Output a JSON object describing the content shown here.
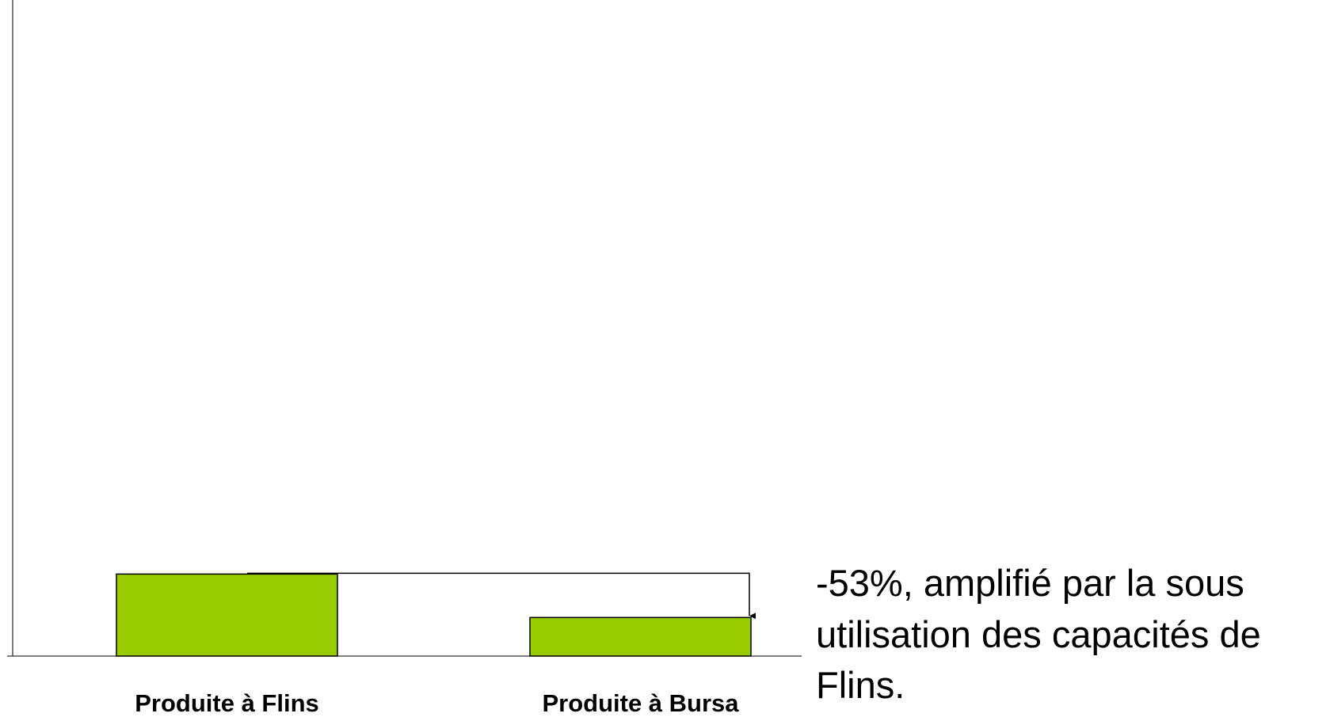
{
  "chart_data": {
    "type": "bar",
    "categories": [
      "Produite à Flins",
      "Produite à Bursa"
    ],
    "values": [
      100,
      47
    ],
    "color": "#99cc00",
    "ylim": [
      0,
      800
    ],
    "annotation": [
      "-53%, amplifié par la sous",
      "utilisation des capacités de",
      "Flins."
    ]
  }
}
